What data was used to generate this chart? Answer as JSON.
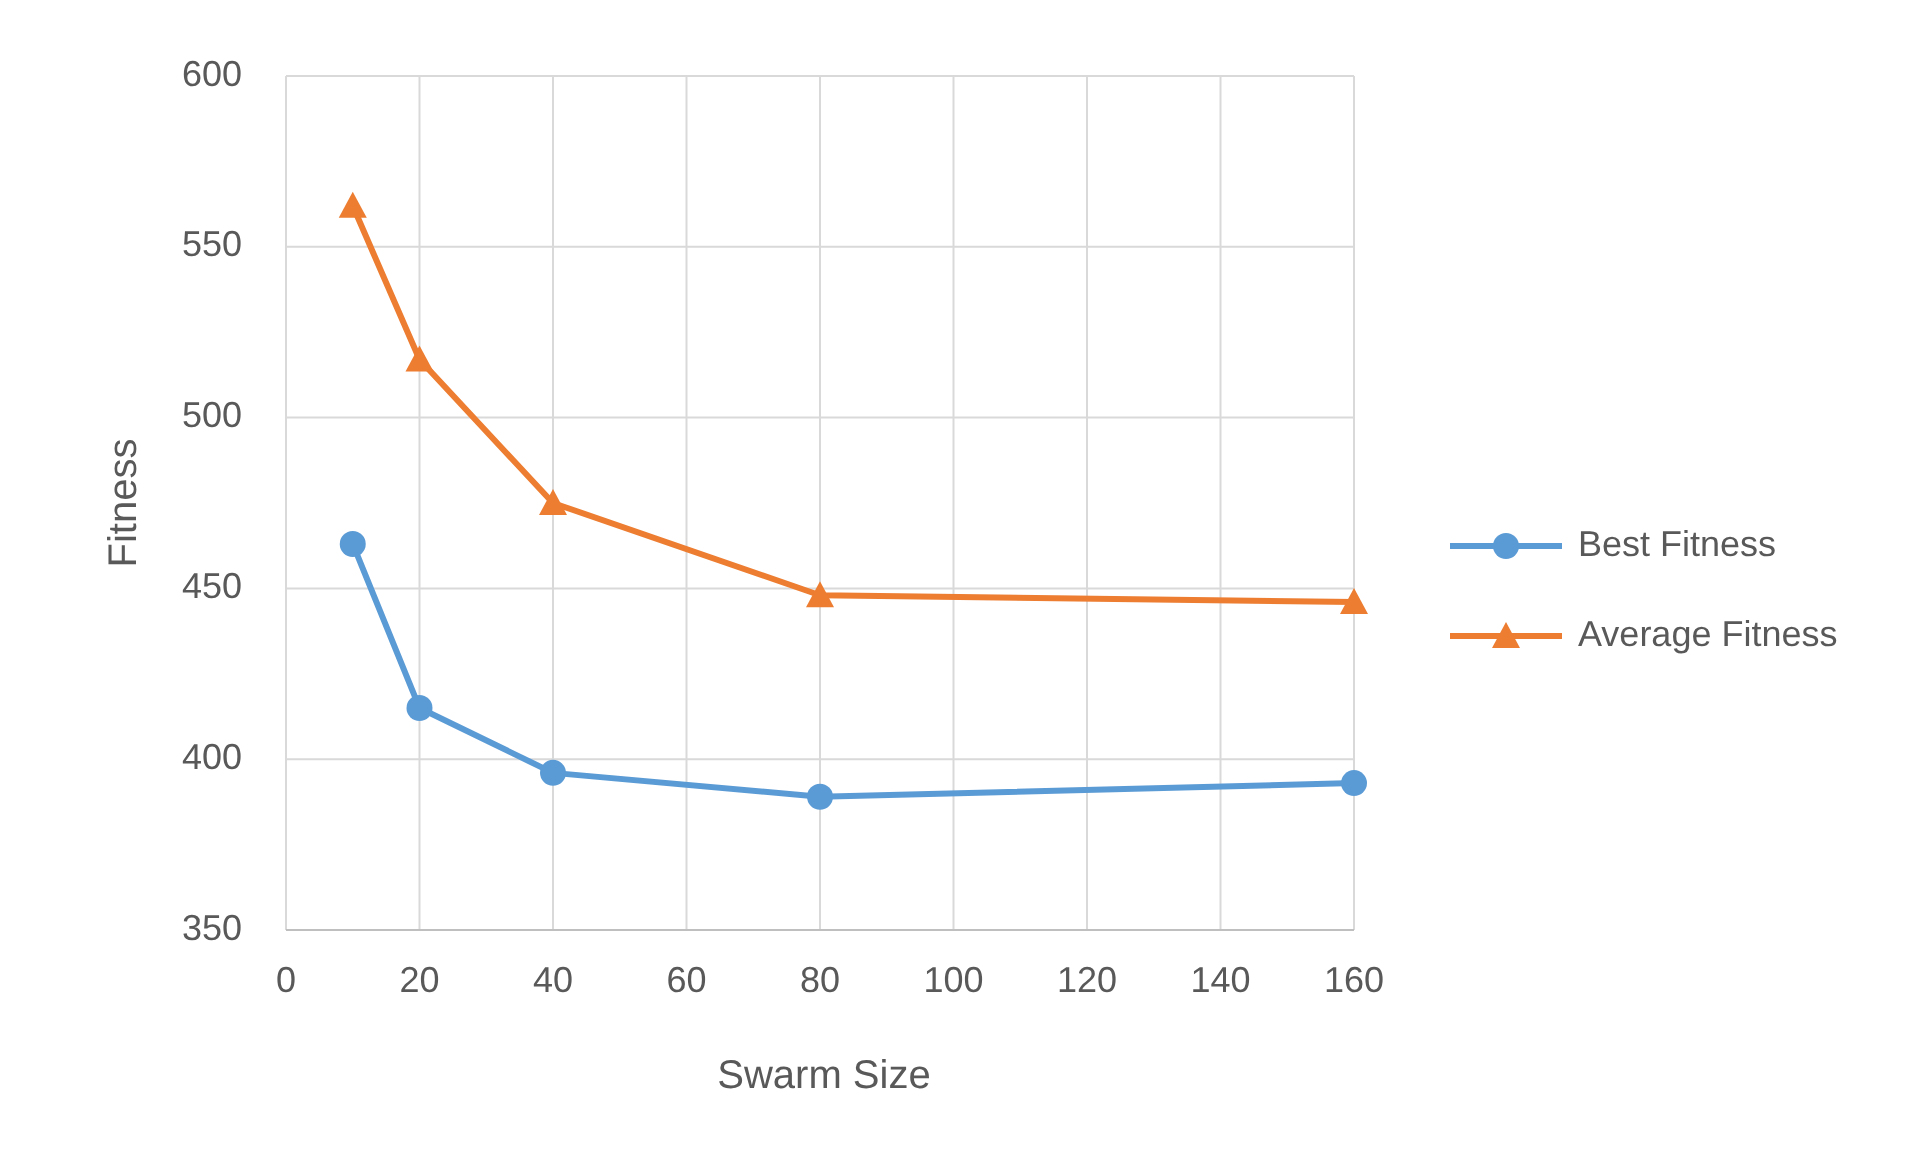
{
  "chart_data": {
    "type": "line",
    "xlabel": "Swarm Size",
    "ylabel": "Fitness",
    "x": [
      10,
      20,
      40,
      80,
      160
    ],
    "series": [
      {
        "name": "Best Fitness",
        "color": "#5b9bd5",
        "marker": "circle",
        "values": [
          463,
          415,
          396,
          389,
          393
        ]
      },
      {
        "name": "Average Fitness",
        "color": "#ed7d31",
        "marker": "triangle",
        "values": [
          562,
          517,
          475,
          448,
          446
        ]
      }
    ],
    "xlim": [
      0,
      160
    ],
    "xticks": [
      0,
      20,
      40,
      60,
      80,
      100,
      120,
      140,
      160
    ],
    "ylim": [
      350,
      600
    ],
    "yticks": [
      350,
      400,
      450,
      500,
      550,
      600
    ],
    "grid": true,
    "legend": "right",
    "line_style": "solid"
  }
}
